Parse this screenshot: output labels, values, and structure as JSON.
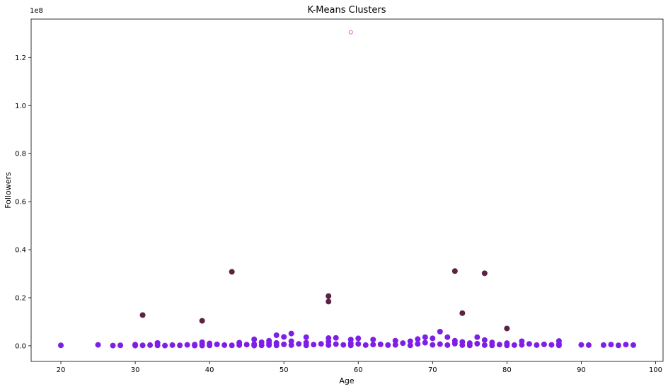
{
  "chart_data": {
    "type": "scatter",
    "title": "K-Means Clusters",
    "xlabel": "Age",
    "ylabel": "Followers",
    "y_offset_label": "1e8",
    "xlim": [
      16,
      101
    ],
    "ylim": [
      -6500000,
      136000000
    ],
    "x_ticks": [
      20,
      30,
      40,
      50,
      60,
      70,
      80,
      90,
      100
    ],
    "y_ticks": [
      0,
      20000000,
      40000000,
      60000000,
      80000000,
      100000000,
      120000000
    ],
    "y_tick_labels": [
      "0.0",
      "0.2",
      "0.4",
      "0.6",
      "0.8",
      "1.0",
      "1.2"
    ],
    "grid": false,
    "legend": "none",
    "colors": {
      "cluster_0": "#7e1fe6",
      "cluster_1": "#5b2244",
      "cluster_2": "#d061d8"
    },
    "series": [
      {
        "cluster": 0,
        "points": [
          [
            20,
            200000
          ],
          [
            25,
            400000
          ],
          [
            27,
            100000
          ],
          [
            28,
            200000
          ],
          [
            30,
            500000
          ],
          [
            30,
            100000
          ],
          [
            31,
            200000
          ],
          [
            32,
            300000
          ],
          [
            33,
            1200000
          ],
          [
            33,
            200000
          ],
          [
            34,
            100000
          ],
          [
            35,
            300000
          ],
          [
            36,
            200000
          ],
          [
            37,
            400000
          ],
          [
            38,
            500000
          ],
          [
            38,
            100000
          ],
          [
            39,
            1500000
          ],
          [
            39,
            600000
          ],
          [
            39,
            100000
          ],
          [
            40,
            1000000
          ],
          [
            40,
            200000
          ],
          [
            41,
            600000
          ],
          [
            42,
            300000
          ],
          [
            43,
            200000
          ],
          [
            44,
            1300000
          ],
          [
            44,
            300000
          ],
          [
            45,
            500000
          ],
          [
            46,
            2700000
          ],
          [
            46,
            700000
          ],
          [
            46,
            100000
          ],
          [
            47,
            1500000
          ],
          [
            47,
            200000
          ],
          [
            48,
            2100000
          ],
          [
            48,
            1000000
          ],
          [
            48,
            300000
          ],
          [
            49,
            4400000
          ],
          [
            49,
            1200000
          ],
          [
            49,
            200000
          ],
          [
            50,
            3700000
          ],
          [
            50,
            600000
          ],
          [
            51,
            5100000
          ],
          [
            51,
            1900000
          ],
          [
            51,
            300000
          ],
          [
            52,
            800000
          ],
          [
            53,
            3600000
          ],
          [
            53,
            1300000
          ],
          [
            53,
            200000
          ],
          [
            54,
            500000
          ],
          [
            55,
            800000
          ],
          [
            56,
            3200000
          ],
          [
            56,
            1700000
          ],
          [
            56,
            300000
          ],
          [
            57,
            3300000
          ],
          [
            57,
            700000
          ],
          [
            58,
            400000
          ],
          [
            59,
            2600000
          ],
          [
            59,
            1100000
          ],
          [
            59,
            200000
          ],
          [
            60,
            3100000
          ],
          [
            60,
            800000
          ],
          [
            61,
            300000
          ],
          [
            62,
            2600000
          ],
          [
            62,
            500000
          ],
          [
            63,
            600000
          ],
          [
            64,
            300000
          ],
          [
            65,
            2100000
          ],
          [
            65,
            400000
          ],
          [
            66,
            1100000
          ],
          [
            67,
            1900000
          ],
          [
            67,
            200000
          ],
          [
            68,
            2800000
          ],
          [
            68,
            800000
          ],
          [
            69,
            3600000
          ],
          [
            69,
            1300000
          ],
          [
            70,
            3100000
          ],
          [
            70,
            400000
          ],
          [
            71,
            5900000
          ],
          [
            71,
            700000
          ],
          [
            72,
            3600000
          ],
          [
            72,
            300000
          ],
          [
            73,
            2100000
          ],
          [
            73,
            900000
          ],
          [
            74,
            1600000
          ],
          [
            74,
            300000
          ],
          [
            75,
            1100000
          ],
          [
            75,
            200000
          ],
          [
            76,
            3600000
          ],
          [
            76,
            900000
          ],
          [
            77,
            2400000
          ],
          [
            77,
            300000
          ],
          [
            78,
            1400000
          ],
          [
            78,
            200000
          ],
          [
            79,
            500000
          ],
          [
            80,
            1100000
          ],
          [
            80,
            200000
          ],
          [
            81,
            300000
          ],
          [
            82,
            1900000
          ],
          [
            82,
            400000
          ],
          [
            83,
            800000
          ],
          [
            84,
            300000
          ],
          [
            85,
            600000
          ],
          [
            86,
            400000
          ],
          [
            87,
            2000000
          ],
          [
            87,
            800000
          ],
          [
            87,
            200000
          ],
          [
            90,
            400000
          ],
          [
            91,
            300000
          ],
          [
            93,
            300000
          ],
          [
            94,
            500000
          ],
          [
            95,
            200000
          ],
          [
            96,
            500000
          ],
          [
            97,
            300000
          ]
        ]
      },
      {
        "cluster": 1,
        "points": [
          [
            31,
            12800000
          ],
          [
            39,
            10400000
          ],
          [
            43,
            30800000
          ],
          [
            56,
            20700000
          ],
          [
            56,
            18400000
          ],
          [
            73,
            31100000
          ],
          [
            74,
            13600000
          ],
          [
            77,
            30200000
          ],
          [
            80,
            7200000
          ]
        ]
      },
      {
        "cluster": 2,
        "points": [
          [
            59,
            130500000
          ]
        ]
      }
    ]
  }
}
